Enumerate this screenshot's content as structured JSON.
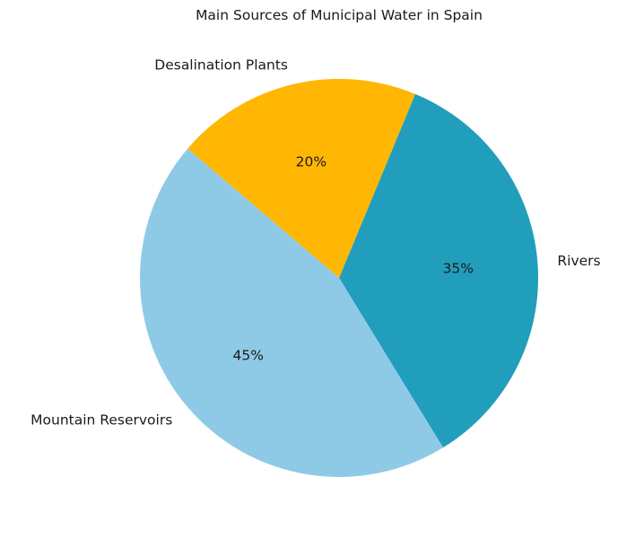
{
  "chart_data": {
    "type": "pie",
    "title": "Main Sources of Municipal Water in Spain",
    "labels": [
      "Rivers",
      "Desalination Plants",
      "Mountain Reservoirs"
    ],
    "values": [
      35,
      20,
      45
    ],
    "percent_labels": [
      "35%",
      "20%",
      "45%"
    ],
    "colors": [
      "#219EBC",
      "#FFB703",
      "#8ECAE6"
    ],
    "start_angle_deg": -58.5,
    "direction": "counterclockwise",
    "legend": "none",
    "label_position": "outside",
    "percent_position": "inside",
    "background_color": "#ffffff",
    "text_color": "#1a1a1a"
  }
}
